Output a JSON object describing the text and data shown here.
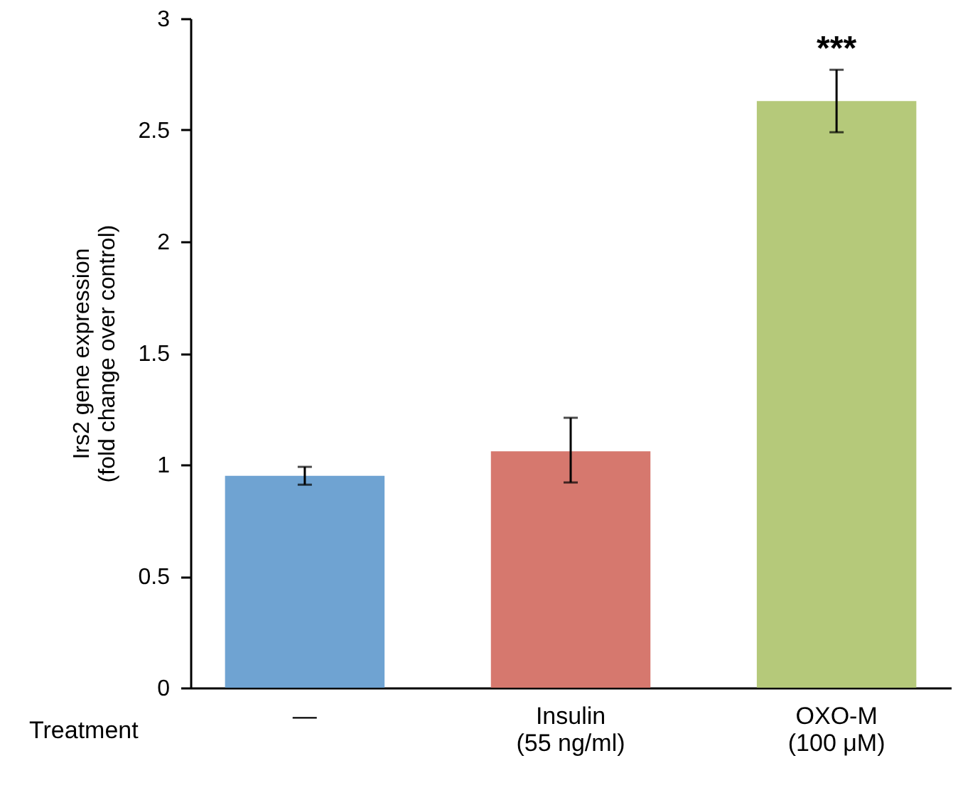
{
  "chart_data": {
    "type": "bar",
    "xlabel": "Treatment",
    "ylabel": "Irs2 gene expression\n(fold change over control)",
    "categories": [
      "—",
      "Insulin\n(55 ng/ml)",
      "OXO-M\n(100 μM)"
    ],
    "values": [
      0.95,
      1.06,
      2.63
    ],
    "colors": [
      "#6fa3d2",
      "#d6786e",
      "#b5c97a"
    ],
    "errors": [
      [
        0.91,
        0.99
      ],
      [
        0.92,
        1.21
      ],
      [
        2.49,
        2.77
      ]
    ],
    "ylim": [
      0,
      3
    ],
    "yticks": [
      0,
      0.5,
      1,
      1.5,
      2,
      2.5,
      3
    ],
    "annotations": [
      "***"
    ],
    "grid": false
  }
}
